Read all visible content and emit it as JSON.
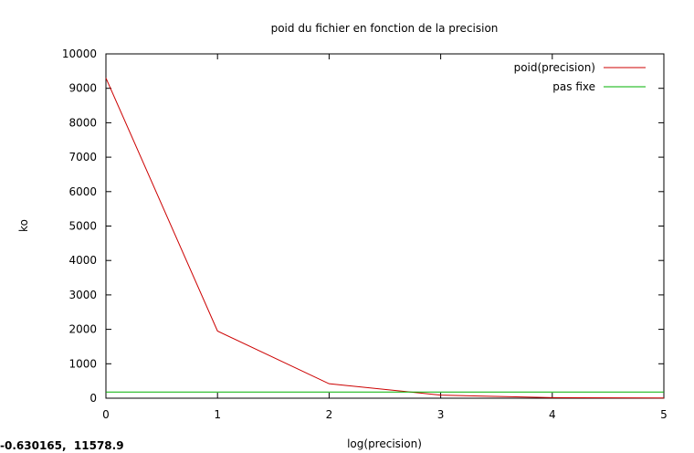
{
  "chart_data": {
    "type": "line",
    "title": "poid du fichier en fonction de la precision",
    "xlabel": "log(precision)",
    "ylabel": "ko",
    "xlim": [
      0,
      5
    ],
    "ylim": [
      0,
      10000
    ],
    "x_ticks": [
      "0",
      "1",
      "2",
      "3",
      "4",
      "5"
    ],
    "y_ticks": [
      "0",
      "1000",
      "2000",
      "3000",
      "4000",
      "5000",
      "6000",
      "7000",
      "8000",
      "9000",
      "10000"
    ],
    "legend_position": "top-right",
    "series": [
      {
        "name": "poid(precision)",
        "color": "#cc0000",
        "x": [
          0,
          1,
          2,
          3,
          4,
          5
        ],
        "y": [
          9300,
          1950,
          420,
          90,
          15,
          5
        ]
      },
      {
        "name": "pas fixe",
        "color": "#00b000",
        "x": [
          0,
          5
        ],
        "y": [
          180,
          180
        ]
      }
    ]
  },
  "status": {
    "coordinates": "-0.630165,  11578.9"
  }
}
